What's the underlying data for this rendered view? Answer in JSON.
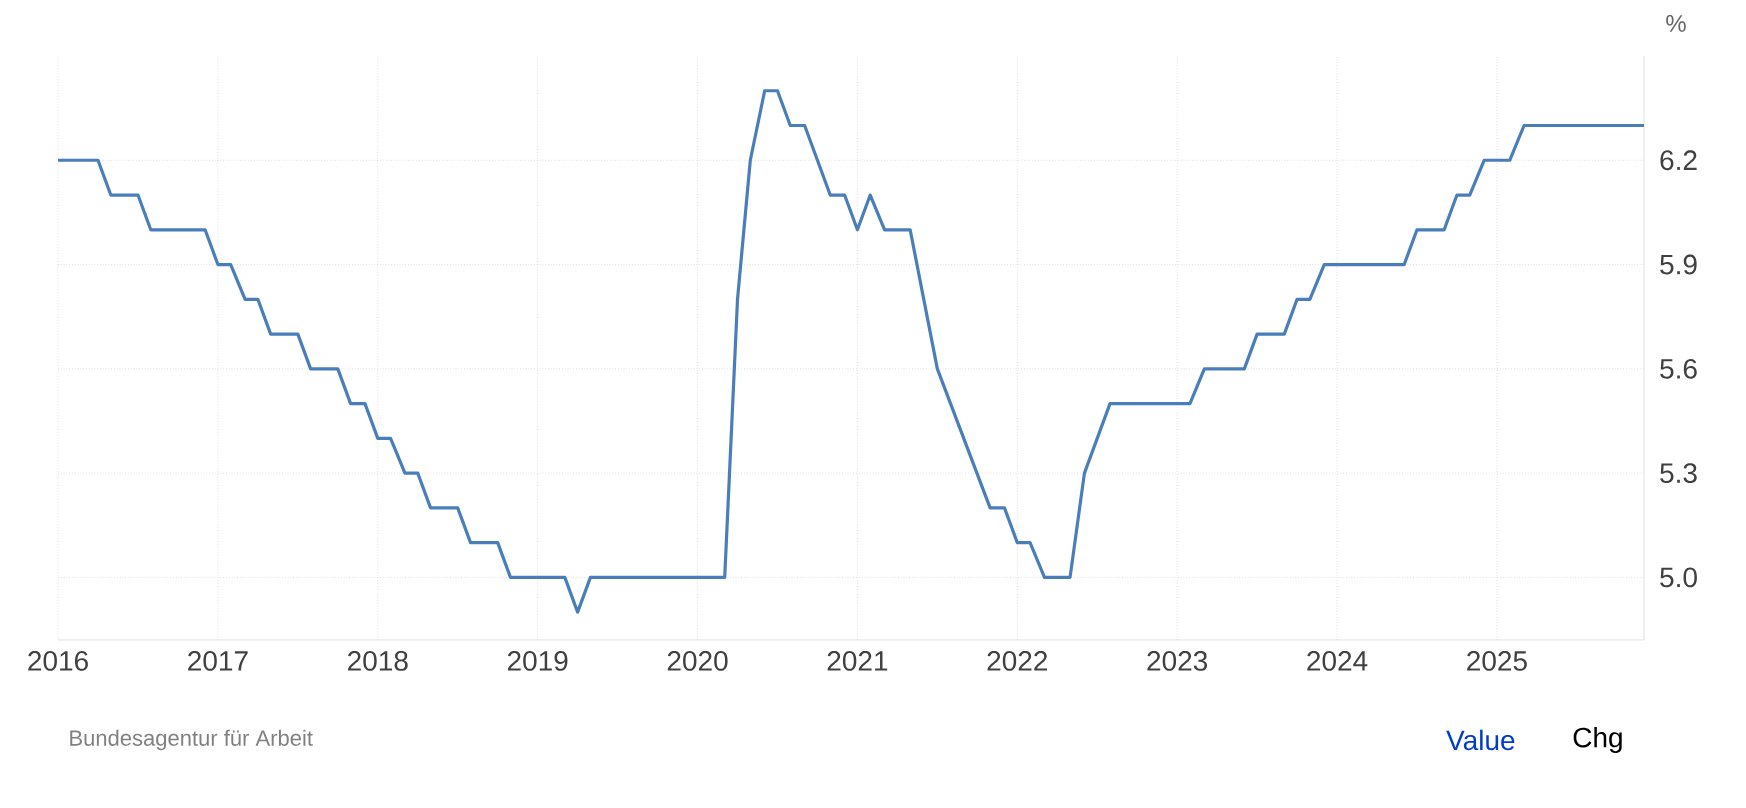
{
  "chart_data": {
    "type": "line",
    "ylabel": "%",
    "x": [
      2016.0,
      2016.25,
      2016.33,
      2016.5,
      2016.58,
      2016.92,
      2017.0,
      2017.08,
      2017.17,
      2017.25,
      2017.33,
      2017.5,
      2017.58,
      2017.75,
      2017.83,
      2017.92,
      2018.0,
      2018.08,
      2018.17,
      2018.25,
      2018.33,
      2018.5,
      2018.58,
      2018.75,
      2018.83,
      2019.17,
      2019.25,
      2019.33,
      2020.17,
      2020.25,
      2020.33,
      2020.42,
      2020.5,
      2020.58,
      2020.67,
      2020.83,
      2020.92,
      2021.0,
      2021.08,
      2021.17,
      2021.33,
      2021.5,
      2021.83,
      2021.92,
      2022.0,
      2022.08,
      2022.17,
      2022.33,
      2022.42,
      2022.58,
      2023.08,
      2023.17,
      2023.42,
      2023.5,
      2023.67,
      2023.75,
      2023.83,
      2023.92,
      2024.42,
      2024.5,
      2024.67,
      2024.75,
      2024.83,
      2024.92,
      2025.08,
      2025.17,
      2025.92
    ],
    "series": [
      {
        "color": "#4a7ebb",
        "values": [
          6.2,
          6.2,
          6.1,
          6.1,
          6.0,
          6.0,
          5.9,
          5.9,
          5.8,
          5.8,
          5.7,
          5.7,
          5.6,
          5.6,
          5.5,
          5.5,
          5.4,
          5.4,
          5.3,
          5.3,
          5.2,
          5.2,
          5.1,
          5.1,
          5.0,
          5.0,
          4.9,
          5.0,
          5.0,
          5.8,
          6.2,
          6.4,
          6.4,
          6.3,
          6.3,
          6.1,
          6.1,
          6.0,
          6.1,
          6.0,
          6.0,
          5.6,
          5.2,
          5.2,
          5.1,
          5.1,
          5.0,
          5.0,
          5.3,
          5.5,
          5.5,
          5.6,
          5.6,
          5.7,
          5.7,
          5.8,
          5.8,
          5.9,
          5.9,
          6.0,
          6.0,
          6.1,
          6.1,
          6.2,
          6.2,
          6.3,
          6.3
        ]
      }
    ],
    "xlim": [
      2016.0,
      2025.92
    ],
    "ylim": [
      4.82,
      6.5
    ],
    "xticks": [
      2016,
      2017,
      2018,
      2019,
      2020,
      2021,
      2022,
      2023,
      2024,
      2025
    ],
    "yticks": [
      {
        "value": 5,
        "label": "5.0"
      },
      5.3,
      5.6,
      5.9,
      6.2
    ],
    "grid": true,
    "marker": "none",
    "line_style": "solid",
    "annotations": [
      "Bundesagentur für Arbeit",
      "Value",
      "Chg"
    ]
  }
}
